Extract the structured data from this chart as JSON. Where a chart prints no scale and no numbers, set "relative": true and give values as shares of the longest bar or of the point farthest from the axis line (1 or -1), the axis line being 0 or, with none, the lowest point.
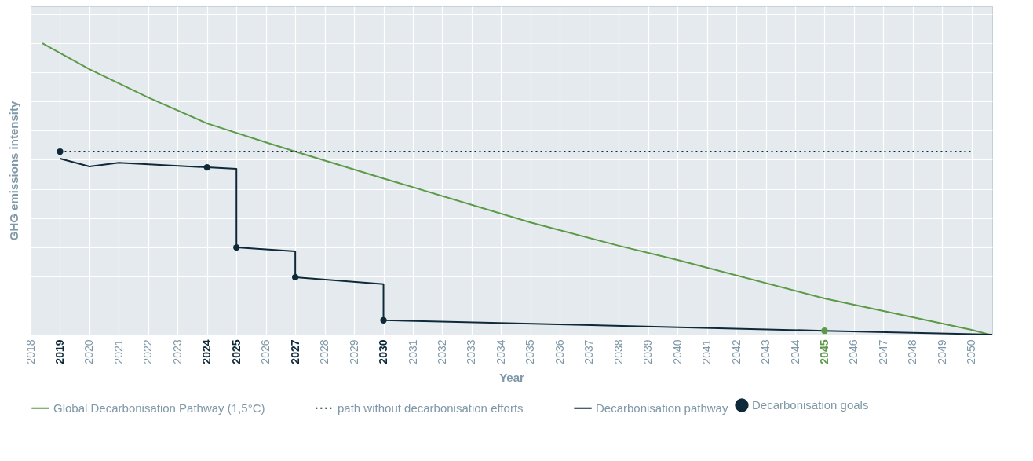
{
  "chart_data": {
    "type": "line",
    "relative": true,
    "xlabel": "Year",
    "ylabel": "GHG emissions intensity",
    "xlim": [
      2018,
      2050.7
    ],
    "xticks": [
      2018,
      2019,
      2020,
      2021,
      2022,
      2023,
      2024,
      2025,
      2026,
      2027,
      2028,
      2029,
      2030,
      2031,
      2032,
      2033,
      2034,
      2035,
      2036,
      2037,
      2038,
      2039,
      2040,
      2041,
      2042,
      2043,
      2044,
      2045,
      2046,
      2047,
      2048,
      2049,
      2050
    ],
    "grid": true,
    "legend": "bottom",
    "marker": "none",
    "series": [
      {
        "name": "Global Decarbonisation Pathway (1,5°C)",
        "color": "#5b9a48",
        "line_style": "solid",
        "x": [
          2018.4,
          2020,
          2022,
          2024,
          2026,
          2027,
          2030,
          2035,
          2038,
          2040,
          2045,
          2050,
          2050.6
        ],
        "values": [
          1,
          0.911,
          0.814,
          0.725,
          0.66,
          0.628,
          0.536,
          0.385,
          0.305,
          0.256,
          0.124,
          0.016,
          0
        ]
      },
      {
        "name": "path without decarbonisation efforts",
        "color": "#0e2a3a",
        "line_style": "dotted",
        "x": [
          2019,
          2050
        ],
        "values": [
          0.628,
          0.628
        ]
      },
      {
        "name": "Decarbonisation pathway",
        "color": "#0e2a3a",
        "line_style": "solid",
        "x": [
          2019,
          2020,
          2021,
          2024,
          2025,
          2025,
          2027,
          2027,
          2030,
          2030,
          2045,
          2050.7
        ],
        "values": [
          0.604,
          0.577,
          0.59,
          0.574,
          0.569,
          0.299,
          0.286,
          0.197,
          0.173,
          0.049,
          0.013,
          0
        ]
      },
      {
        "name": "Decarbonisation goals",
        "type": "scatter",
        "marker": "circle",
        "color": "#0e2a3a",
        "colors": [
          "#0e2a3a",
          "#0e2a3a",
          "#0e2a3a",
          "#0e2a3a",
          "#0e2a3a",
          "#5b9a48"
        ],
        "x": [
          2019,
          2024,
          2025,
          2027,
          2030,
          2045
        ],
        "values": [
          0.628,
          0.574,
          0.299,
          0.197,
          0.049,
          0.013
        ]
      }
    ]
  }
}
